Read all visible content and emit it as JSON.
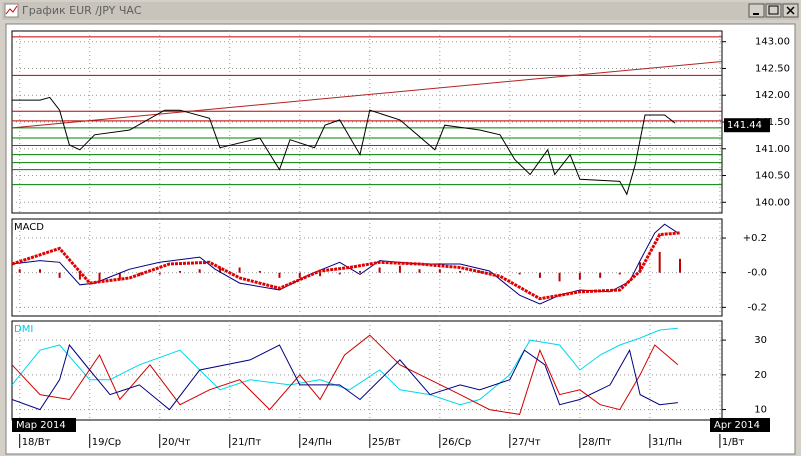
{
  "window": {
    "title": "График EUR /JPY ЧАС"
  },
  "months": [
    "Мар 2014",
    "Apr 2014"
  ],
  "chart_data": [
    {
      "type": "line",
      "xlim": [
        -0.11,
        10.03
      ],
      "ylim": [
        139.8,
        143.2
      ],
      "yticks": [
        {
          "value": 143,
          "label": "143.00"
        },
        {
          "value": 142.5,
          "label": "142.50"
        },
        {
          "value": 142,
          "label": "142.00"
        },
        {
          "value": 141.5,
          "label": "141.50"
        },
        {
          "value": 141,
          "label": "141.00"
        },
        {
          "value": 140.5,
          "label": "140.50"
        },
        {
          "value": 140,
          "label": "140.00"
        }
      ],
      "last_value": 141.44,
      "levels": [
        {
          "value": 143.09,
          "color": "#c00000"
        },
        {
          "value": 142.37,
          "color": "#c00000"
        },
        {
          "value": 141.7,
          "color": "#c00000"
        },
        {
          "value": 141.52,
          "color": "#c00000"
        },
        {
          "value": 141.39,
          "color": "#008000"
        },
        {
          "value": 141.2,
          "color": "#008000"
        },
        {
          "value": 141.06,
          "color": "#008000"
        },
        {
          "value": 140.89,
          "color": "#008000"
        },
        {
          "value": 140.74,
          "color": "#008000"
        },
        {
          "value": 140.61,
          "color": "#008000"
        },
        {
          "value": 140.33,
          "color": "#008000"
        }
      ],
      "series": [
        {
          "color": "#b22222",
          "style": "line",
          "x": [
            -0.11,
            10.03
          ],
          "values": [
            141.39,
            142.63
          ]
        },
        {
          "color": "#000000",
          "style": "line",
          "x": [
            -0.11,
            0.29,
            0.43,
            0.57,
            0.71,
            0.86,
            1.07,
            1.57,
            2.07,
            2.29,
            2.71,
            2.86,
            3.43,
            3.71,
            3.86,
            4.21,
            4.36,
            4.57,
            4.86,
            5.0,
            5.43,
            5.93,
            6.07,
            6.57,
            6.86,
            7.07,
            7.29,
            7.54,
            7.64,
            7.86,
            8.0,
            8.57,
            8.67,
            8.79,
            8.93,
            9.21,
            9.36
          ],
          "values": [
            141.91,
            141.91,
            141.96,
            141.72,
            141.07,
            140.98,
            141.26,
            141.35,
            141.72,
            141.72,
            141.57,
            141.02,
            141.2,
            140.61,
            141.17,
            141.02,
            141.44,
            141.54,
            140.89,
            141.72,
            141.54,
            140.98,
            141.44,
            141.35,
            141.26,
            140.8,
            140.52,
            140.98,
            140.52,
            140.89,
            140.43,
            140.39,
            140.15,
            140.7,
            141.63,
            141.63,
            141.48
          ]
        }
      ]
    },
    {
      "type": "line",
      "label": "MACD",
      "xlim": [
        -0.11,
        10.03
      ],
      "ylim": [
        -0.25,
        0.31
      ],
      "yticks": [
        {
          "value": 0.2,
          "label": "+0.2"
        },
        {
          "value": 0,
          "label": "-0.0"
        },
        {
          "value": -0.2,
          "label": "-0.2"
        }
      ],
      "series": [
        {
          "color": "#c00000",
          "style": "bars",
          "x": [
            0,
            0.29,
            0.57,
            0.86,
            1.14,
            1.43,
            1.71,
            2.0,
            2.29,
            2.57,
            2.86,
            3.14,
            3.43,
            3.71,
            4.0,
            4.29,
            4.57,
            4.86,
            5.14,
            5.43,
            5.71,
            6.0,
            6.29,
            6.57,
            6.86,
            7.14,
            7.43,
            7.71,
            8.0,
            8.29,
            8.57,
            8.86,
            9.14,
            9.43
          ],
          "values": [
            0.02,
            0.02,
            -0.03,
            -0.04,
            -0.05,
            -0.04,
            -0.02,
            -0.01,
            0.01,
            0.02,
            0.03,
            0.03,
            0.01,
            -0.03,
            -0.03,
            -0.02,
            -0.01,
            0.01,
            0.03,
            0.04,
            0.02,
            0.02,
            0.01,
            0.01,
            0.0,
            -0.01,
            -0.03,
            -0.05,
            -0.04,
            -0.03,
            -0.01,
            0.06,
            0.12,
            0.08
          ]
        },
        {
          "color": "#000080",
          "style": "line",
          "x": [
            -0.11,
            0.29,
            0.57,
            0.86,
            1.07,
            1.57,
            2.0,
            2.57,
            2.79,
            3.14,
            3.71,
            4.14,
            4.57,
            4.86,
            5.14,
            5.71,
            6.29,
            6.71,
            7.14,
            7.43,
            7.71,
            8.0,
            8.43,
            8.71,
            8.86,
            9.07,
            9.21,
            9.4
          ],
          "values": [
            0.05,
            0.07,
            0.06,
            -0.07,
            -0.06,
            0.02,
            0.06,
            0.09,
            0.02,
            -0.06,
            -0.1,
            -0.01,
            0.06,
            -0.01,
            0.07,
            0.05,
            0.05,
            0.01,
            -0.13,
            -0.18,
            -0.13,
            -0.1,
            -0.11,
            -0.05,
            0.07,
            0.23,
            0.28,
            0.23
          ]
        },
        {
          "color": "#e00000",
          "style": "dots",
          "x": [
            -0.11,
            0.57,
            1.0,
            1.57,
            2.14,
            2.71,
            3.14,
            3.71,
            4.29,
            4.71,
            5.14,
            5.71,
            6.29,
            6.86,
            7.43,
            8.0,
            8.57,
            8.86,
            9.14,
            9.43
          ],
          "values": [
            0.05,
            0.14,
            -0.06,
            -0.03,
            0.05,
            0.06,
            -0.03,
            -0.09,
            0.01,
            0.03,
            0.06,
            0.05,
            0.03,
            -0.02,
            -0.15,
            -0.11,
            -0.1,
            0.01,
            0.22,
            0.23
          ]
        }
      ]
    },
    {
      "type": "line",
      "label": "DMI",
      "xlim": [
        -0.11,
        10.03
      ],
      "ylim": [
        7,
        35.5
      ],
      "yticks": [
        30,
        20,
        10
      ],
      "xticks": [
        {
          "value": 0,
          "label": "18/Вт"
        },
        {
          "value": 1,
          "label": "19/Ср"
        },
        {
          "value": 2,
          "label": "20/Чт"
        },
        {
          "value": 3,
          "label": "21/Пт"
        },
        {
          "value": 4,
          "label": "24/Пн"
        },
        {
          "value": 5,
          "label": "25/Вт"
        },
        {
          "value": 6,
          "label": "26/Ср"
        },
        {
          "value": 7,
          "label": "27/Чт"
        },
        {
          "value": 8,
          "label": "28/Пт"
        },
        {
          "value": 9,
          "label": "31/Пн"
        },
        {
          "value": 10,
          "label": "1/Вт"
        }
      ],
      "series": [
        {
          "color": "#00d8f0",
          "style": "line",
          "x": [
            -0.11,
            0.29,
            0.57,
            1.0,
            1.29,
            1.71,
            2.29,
            2.57,
            2.86,
            3.29,
            3.86,
            4.29,
            4.71,
            5.14,
            5.43,
            5.86,
            6.29,
            6.57,
            7.0,
            7.29,
            7.71,
            8.0,
            8.29,
            8.57,
            8.86,
            9.14,
            9.4
          ],
          "values": [
            17.1,
            27.1,
            28.6,
            18.6,
            18.6,
            22.9,
            27.1,
            21.4,
            15.7,
            18.6,
            17.1,
            18.6,
            15.7,
            21.4,
            15.7,
            14.3,
            11.4,
            12.9,
            20,
            30,
            28.6,
            21.4,
            25.7,
            28.6,
            30.6,
            32.9,
            33.4
          ]
        },
        {
          "color": "#d00000",
          "style": "line",
          "x": [
            -0.11,
            0.29,
            0.71,
            1.14,
            1.43,
            1.86,
            2.29,
            2.71,
            3.14,
            3.57,
            4.0,
            4.29,
            4.64,
            5.0,
            5.43,
            5.86,
            6.29,
            6.71,
            7.14,
            7.43,
            7.71,
            8.0,
            8.29,
            8.57,
            8.86,
            9.07,
            9.4
          ],
          "values": [
            22.9,
            14.3,
            12.9,
            25.7,
            12.9,
            22.9,
            11.4,
            15.7,
            18.6,
            10,
            20,
            12.9,
            25.7,
            31.4,
            22.9,
            18.6,
            14.3,
            10,
            8.6,
            27.1,
            14.3,
            15.7,
            11.4,
            10,
            20,
            28.6,
            22.9
          ]
        },
        {
          "color": "#000080",
          "style": "line",
          "x": [
            -0.11,
            0.29,
            0.57,
            0.71,
            1.0,
            1.29,
            1.71,
            2.14,
            2.57,
            3.29,
            3.71,
            4.0,
            4.57,
            4.86,
            5.43,
            5.86,
            6.29,
            6.57,
            7.0,
            7.21,
            7.5,
            7.71,
            8.0,
            8.43,
            8.71,
            8.86,
            9.14,
            9.4
          ],
          "values": [
            12.9,
            10,
            18.6,
            28.6,
            21.4,
            14.3,
            17.1,
            10,
            21.4,
            24.3,
            28.6,
            17.1,
            17.1,
            12.9,
            24.3,
            14.3,
            17.1,
            15.7,
            18.6,
            27.1,
            22.9,
            11.4,
            12.9,
            17.1,
            27.1,
            14.3,
            11.4,
            12
          ]
        }
      ]
    }
  ]
}
